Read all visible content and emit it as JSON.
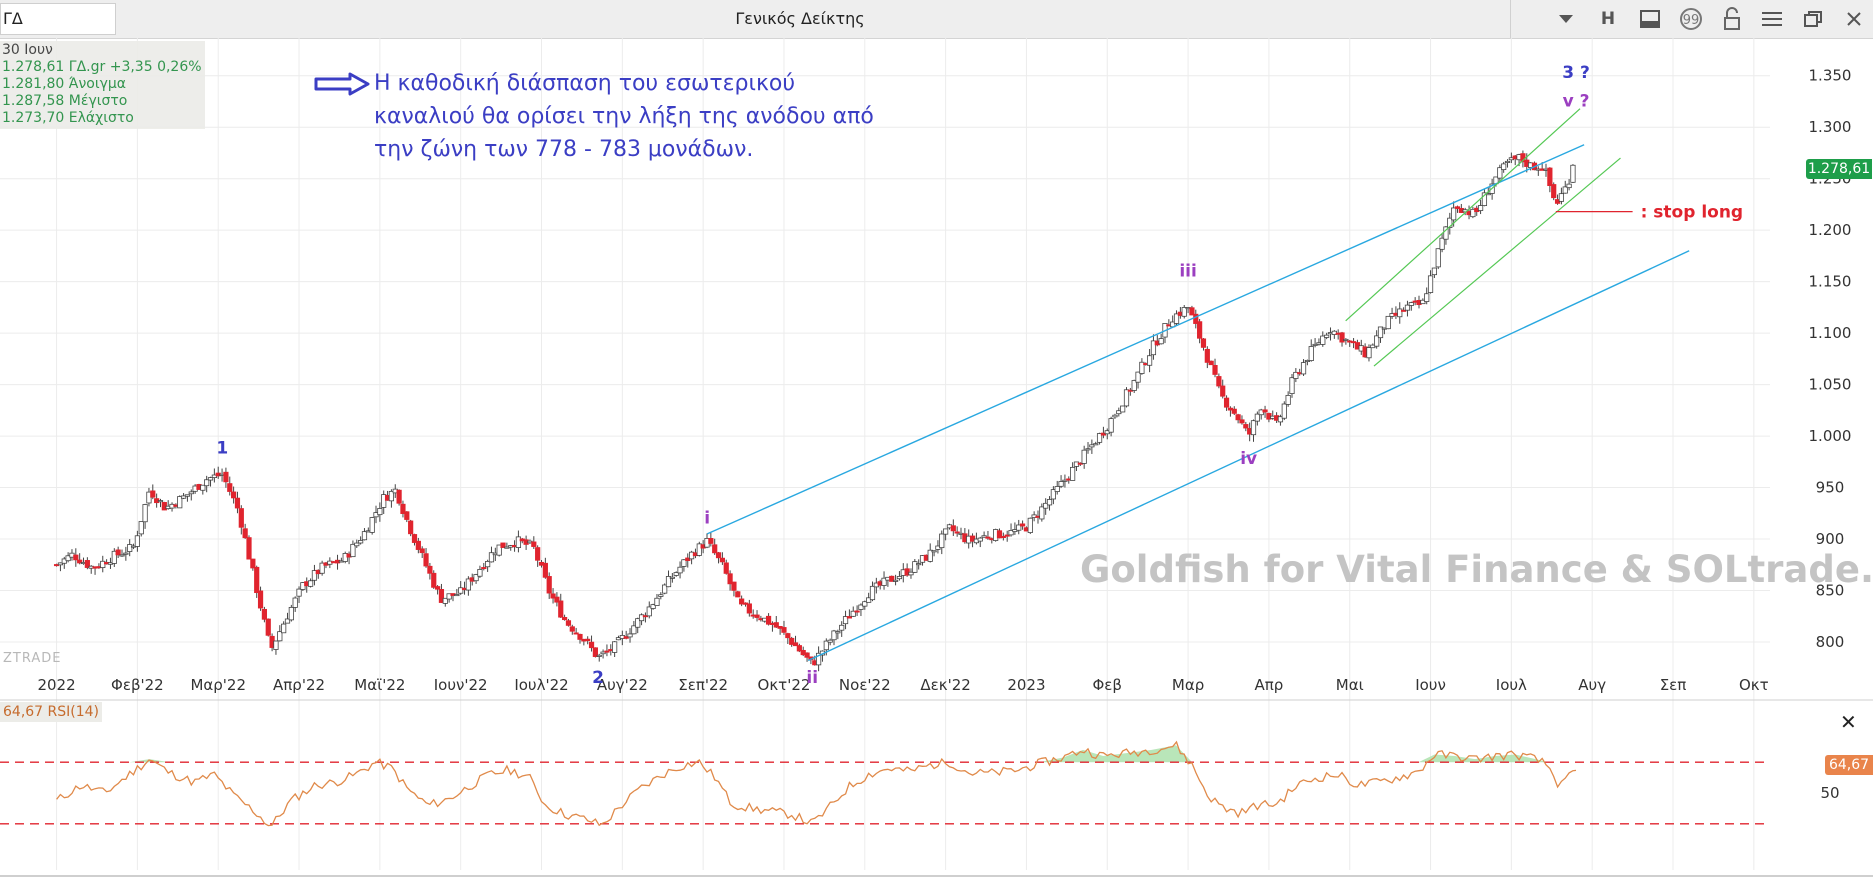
{
  "window": {
    "symbol": "ΓΔ",
    "title": "Γενικός Δείκτης",
    "toolbar_letter": "H"
  },
  "info_panel": {
    "date": "30 Ιουν",
    "last": "1.278,61 ΓΔ.gr",
    "change": "+3,35 0,26%",
    "open": "1.281,80 Άνοιγμα",
    "high": "1.287,58 Μέγιστο",
    "low": "1.273,70 Ελάχιστο"
  },
  "annotation_text": [
    "Η καθοδική διάσπαση του εσωτερικού",
    "καναλιού θα ορίσει την λήξη της ανόδου από",
    "την ζώνη των 778 - 783 μονάδων."
  ],
  "stop_label": ": stop long",
  "watermark": "Goldfish for Vital Finance & SOLtrade.gr",
  "small_logo": "ZTRADE",
  "last_price_badge": "1.278,61",
  "rsi": {
    "label": "64,67 RSI(14)",
    "value_badge": "64,67",
    "mid_label": "50"
  },
  "colors": {
    "up_candle": "#ffffff",
    "down_candle": "#e0242e",
    "wick": "#444444",
    "outer_channel": "#29a8e0",
    "inner_channel": "#54c854",
    "blue_label": "#3b3ec4",
    "purple_label": "#9b3fc0",
    "stop_red": "#e0242e",
    "rsi_line": "#e08a4a",
    "rsi_band": "#e0242e",
    "rsi_fill": "#a8e0a8",
    "badge_green": "#1e9e4a"
  },
  "chart_data": {
    "type": "candlestick",
    "title": "Γενικός Δείκτης",
    "x_ticks": [
      "2022",
      "Φεβ'22",
      "Μαρ'22",
      "Απρ'22",
      "Μαϊ'22",
      "Ιουν'22",
      "Ιουλ'22",
      "Αυγ'22",
      "Σεπ'22",
      "Οκτ'22",
      "Νοε'22",
      "Δεκ'22",
      "2023",
      "Φεβ",
      "Μαρ",
      "Απρ",
      "Μαι",
      "Ιουν",
      "Ιουλ",
      "Αυγ",
      "Σεπ",
      "Οκτ"
    ],
    "y_ticks": [
      "800",
      "850",
      "900",
      "950",
      "1.000",
      "1.050",
      "1.100",
      "1.150",
      "1.200",
      "1.250",
      "1.300",
      "1.350"
    ],
    "y_range": [
      765,
      1375
    ],
    "x_range_months": [
      -0.7,
      21.2
    ],
    "price_path": [
      [
        0.0,
        875
      ],
      [
        0.2,
        885
      ],
      [
        0.45,
        872
      ],
      [
        0.7,
        883
      ],
      [
        0.95,
        892
      ],
      [
        1.15,
        948
      ],
      [
        1.35,
        930
      ],
      [
        1.6,
        942
      ],
      [
        1.85,
        958
      ],
      [
        2.05,
        963
      ],
      [
        2.25,
        928
      ],
      [
        2.45,
        860
      ],
      [
        2.65,
        792
      ],
      [
        2.85,
        825
      ],
      [
        3.05,
        855
      ],
      [
        3.3,
        873
      ],
      [
        3.55,
        880
      ],
      [
        3.8,
        905
      ],
      [
        4.05,
        940
      ],
      [
        4.2,
        948
      ],
      [
        4.35,
        915
      ],
      [
        4.55,
        878
      ],
      [
        4.75,
        842
      ],
      [
        5.0,
        848
      ],
      [
        5.2,
        868
      ],
      [
        5.45,
        892
      ],
      [
        5.7,
        898
      ],
      [
        5.9,
        892
      ],
      [
        6.1,
        848
      ],
      [
        6.3,
        820
      ],
      [
        6.5,
        805
      ],
      [
        6.7,
        785
      ],
      [
        6.9,
        795
      ],
      [
        7.1,
        812
      ],
      [
        7.35,
        835
      ],
      [
        7.6,
        862
      ],
      [
        7.85,
        885
      ],
      [
        8.05,
        898
      ],
      [
        8.25,
        872
      ],
      [
        8.45,
        835
      ],
      [
        8.7,
        825
      ],
      [
        8.9,
        815
      ],
      [
        9.1,
        800
      ],
      [
        9.35,
        778
      ],
      [
        9.55,
        800
      ],
      [
        9.8,
        825
      ],
      [
        10.05,
        848
      ],
      [
        10.3,
        860
      ],
      [
        10.55,
        870
      ],
      [
        10.8,
        885
      ],
      [
        11.05,
        910
      ],
      [
        11.3,
        898
      ],
      [
        11.55,
        904
      ],
      [
        11.8,
        906
      ],
      [
        12.0,
        912
      ],
      [
        12.25,
        935
      ],
      [
        12.5,
        960
      ],
      [
        12.75,
        985
      ],
      [
        13.0,
        1010
      ],
      [
        13.3,
        1048
      ],
      [
        13.55,
        1085
      ],
      [
        13.8,
        1115
      ],
      [
        14.0,
        1125
      ],
      [
        14.2,
        1085
      ],
      [
        14.4,
        1040
      ],
      [
        14.6,
        1020
      ],
      [
        14.75,
        1000
      ],
      [
        14.9,
        1030
      ],
      [
        15.1,
        1010
      ],
      [
        15.3,
        1055
      ],
      [
        15.5,
        1080
      ],
      [
        15.75,
        1105
      ],
      [
        16.0,
        1090
      ],
      [
        16.2,
        1080
      ],
      [
        16.45,
        1110
      ],
      [
        16.7,
        1125
      ],
      [
        16.9,
        1128
      ],
      [
        17.1,
        1180
      ],
      [
        17.3,
        1225
      ],
      [
        17.55,
        1215
      ],
      [
        17.75,
        1245
      ],
      [
        17.95,
        1265
      ],
      [
        18.1,
        1270
      ],
      [
        18.25,
        1262
      ],
      [
        18.4,
        1262
      ],
      [
        18.55,
        1225
      ],
      [
        18.7,
        1245
      ],
      [
        18.8,
        1278
      ]
    ],
    "wave_labels": [
      {
        "text": "1",
        "x": 2.05,
        "y": 983,
        "color": "blue"
      },
      {
        "text": "2",
        "x": 6.7,
        "y": 760,
        "color": "blue"
      },
      {
        "text": "i",
        "x": 8.05,
        "y": 915,
        "color": "purple"
      },
      {
        "text": "ii",
        "x": 9.35,
        "y": 760,
        "color": "purple"
      },
      {
        "text": "iii",
        "x": 14.0,
        "y": 1155,
        "color": "purple"
      },
      {
        "text": "iv",
        "x": 14.75,
        "y": 973,
        "color": "purple"
      },
      {
        "text": "3 ?",
        "x": 18.8,
        "y": 1348,
        "color": "blue"
      },
      {
        "text": "v ?",
        "x": 18.8,
        "y": 1320,
        "color": "purple"
      }
    ],
    "channels": {
      "outer_upper": [
        [
          8.05,
          905
        ],
        [
          18.9,
          1283
        ]
      ],
      "outer_lower": [
        [
          9.3,
          782
        ],
        [
          20.2,
          1180
        ]
      ],
      "inner_upper": [
        [
          15.95,
          1112
        ],
        [
          18.85,
          1318
        ]
      ],
      "inner_lower": [
        [
          16.3,
          1068
        ],
        [
          19.35,
          1270
        ]
      ]
    },
    "stop_line": {
      "x0": 18.55,
      "x1": 19.5,
      "y": 1218
    },
    "rsi": {
      "upper_band": 70,
      "lower_band": 30,
      "value": 64.67,
      "path": [
        [
          0.0,
          45
        ],
        [
          0.3,
          55
        ],
        [
          0.6,
          50
        ],
        [
          0.9,
          62
        ],
        [
          1.15,
          72
        ],
        [
          1.4,
          63
        ],
        [
          1.7,
          57
        ],
        [
          1.95,
          62
        ],
        [
          2.2,
          48
        ],
        [
          2.45,
          38
        ],
        [
          2.65,
          28
        ],
        [
          2.9,
          45
        ],
        [
          3.2,
          55
        ],
        [
          3.45,
          57
        ],
        [
          3.7,
          62
        ],
        [
          3.95,
          70
        ],
        [
          4.15,
          66
        ],
        [
          4.35,
          52
        ],
        [
          4.6,
          42
        ],
        [
          4.85,
          46
        ],
        [
          5.1,
          54
        ],
        [
          5.35,
          62
        ],
        [
          5.6,
          65
        ],
        [
          5.85,
          60
        ],
        [
          6.05,
          42
        ],
        [
          6.3,
          36
        ],
        [
          6.55,
          33
        ],
        [
          6.75,
          29
        ],
        [
          6.95,
          40
        ],
        [
          7.2,
          52
        ],
        [
          7.5,
          62
        ],
        [
          7.75,
          68
        ],
        [
          7.95,
          70
        ],
        [
          8.15,
          60
        ],
        [
          8.35,
          43
        ],
        [
          8.6,
          40
        ],
        [
          8.85,
          38
        ],
        [
          9.1,
          36
        ],
        [
          9.35,
          30
        ],
        [
          9.55,
          40
        ],
        [
          9.8,
          54
        ],
        [
          10.05,
          62
        ],
        [
          10.3,
          66
        ],
        [
          10.55,
          64
        ],
        [
          10.8,
          68
        ],
        [
          11.05,
          70
        ],
        [
          11.3,
          63
        ],
        [
          11.6,
          63
        ],
        [
          11.9,
          65
        ],
        [
          12.15,
          69
        ],
        [
          12.45,
          73
        ],
        [
          12.7,
          78
        ],
        [
          12.95,
          74
        ],
        [
          13.25,
          76
        ],
        [
          13.55,
          78
        ],
        [
          13.85,
          81
        ],
        [
          14.05,
          68
        ],
        [
          14.25,
          48
        ],
        [
          14.45,
          40
        ],
        [
          14.65,
          37
        ],
        [
          14.85,
          42
        ],
        [
          15.1,
          43
        ],
        [
          15.35,
          55
        ],
        [
          15.6,
          60
        ],
        [
          15.85,
          62
        ],
        [
          16.1,
          55
        ],
        [
          16.35,
          57
        ],
        [
          16.6,
          60
        ],
        [
          16.85,
          64
        ],
        [
          17.05,
          75
        ],
        [
          17.3,
          74
        ],
        [
          17.55,
          72
        ],
        [
          17.8,
          74
        ],
        [
          18.05,
          75
        ],
        [
          18.3,
          72
        ],
        [
          18.45,
          68
        ],
        [
          18.6,
          54
        ],
        [
          18.8,
          64.67
        ]
      ]
    }
  }
}
